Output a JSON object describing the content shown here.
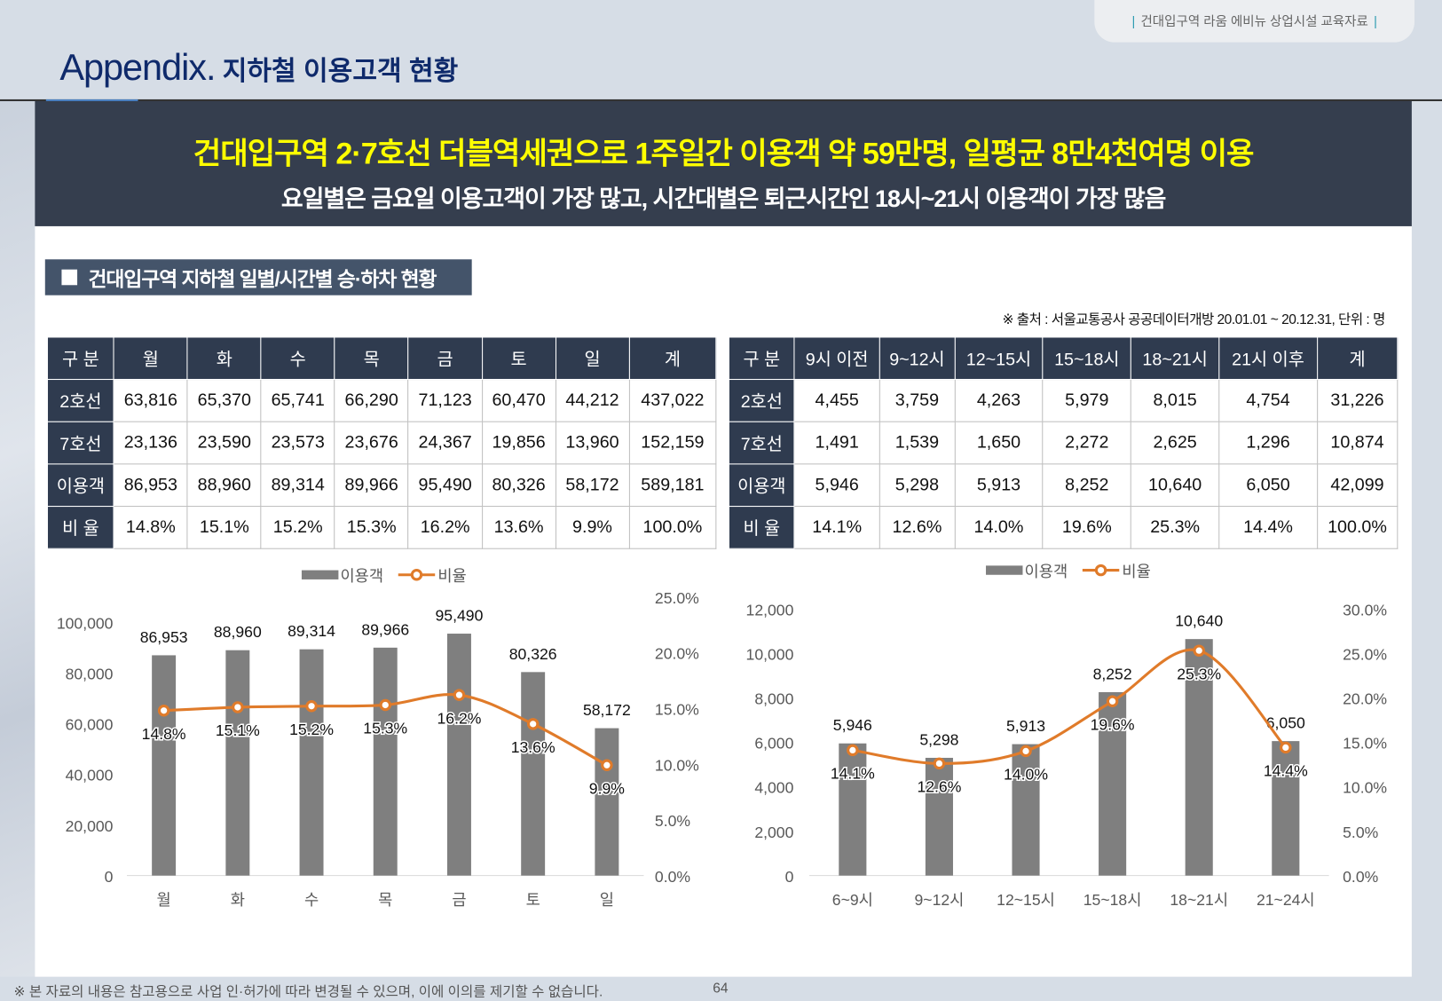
{
  "header": {
    "doc_tag": "건대입구역 라움 에비뉴 상업시설 교육자료",
    "title_main": "Appendix.",
    "title_sub": "지하철 이용고객 현황"
  },
  "banner": {
    "headline": "건대입구역 2·7호선 더블역세권으로 1주일간 이용객 약 59만명, 일평균 8만4천여명 이용",
    "subline": "요일별은 금요일 이용고객이 가장 많고, 시간대별은 퇴근시간인 18시~21시 이용객이 가장 많음"
  },
  "section": {
    "title": "건대입구역 지하철 일별/시간별 승·하차 현황",
    "source": "※ 출처 : 서울교통공사 공공데이터개방 20.01.01 ~ 20.12.31, 단위 : 명"
  },
  "tables": [
    {
      "headers": [
        "구 분",
        "월",
        "화",
        "수",
        "목",
        "금",
        "토",
        "일",
        "계"
      ],
      "rows": [
        [
          "2호선",
          "63,816",
          "65,370",
          "65,741",
          "66,290",
          "71,123",
          "60,470",
          "44,212",
          "437,022"
        ],
        [
          "7호선",
          "23,136",
          "23,590",
          "23,573",
          "23,676",
          "24,367",
          "19,856",
          "13,960",
          "152,159"
        ],
        [
          "이용객",
          "86,953",
          "88,960",
          "89,314",
          "89,966",
          "95,490",
          "80,326",
          "58,172",
          "589,181"
        ],
        [
          "비 율",
          "14.8%",
          "15.1%",
          "15.2%",
          "15.3%",
          "16.2%",
          "13.6%",
          "9.9%",
          "100.0%"
        ]
      ]
    },
    {
      "headers": [
        "구 분",
        "9시 이전",
        "9~12시",
        "12~15시",
        "15~18시",
        "18~21시",
        "21시 이후",
        "계"
      ],
      "rows": [
        [
          "2호선",
          "4,455",
          "3,759",
          "4,263",
          "5,979",
          "8,015",
          "4,754",
          "31,226"
        ],
        [
          "7호선",
          "1,491",
          "1,539",
          "1,650",
          "2,272",
          "2,625",
          "1,296",
          "10,874"
        ],
        [
          "이용객",
          "5,946",
          "5,298",
          "5,913",
          "8,252",
          "10,640",
          "6,050",
          "42,099"
        ],
        [
          "비 율",
          "14.1%",
          "12.6%",
          "14.0%",
          "19.6%",
          "25.3%",
          "14.4%",
          "100.0%"
        ]
      ]
    }
  ],
  "chart_data": [
    {
      "type": "bar+line",
      "legend": [
        "이용객",
        "비율"
      ],
      "legend_position": "top",
      "categories": [
        "월",
        "화",
        "수",
        "목",
        "금",
        "토",
        "일"
      ],
      "series": [
        {
          "name": "이용객",
          "type": "bar",
          "values": [
            86953,
            88960,
            89314,
            89966,
            95490,
            80326,
            58172
          ],
          "labels": [
            "86,953",
            "88,960",
            "89,314",
            "89,966",
            "95,490",
            "80,326",
            "58,172"
          ]
        },
        {
          "name": "비율",
          "type": "line",
          "values": [
            14.8,
            15.1,
            15.2,
            15.3,
            16.2,
            13.6,
            9.9
          ],
          "labels": [
            "14.8%",
            "15.1%",
            "15.2%",
            "15.3%",
            "16.2%",
            "13.6%",
            "9.9%"
          ]
        }
      ],
      "ylim": [
        0,
        110000
      ],
      "y_ticks": [
        "0",
        "20,000",
        "40,000",
        "60,000",
        "80,000",
        "100,000"
      ],
      "y_tick_values": [
        0,
        20000,
        40000,
        60000,
        80000,
        100000
      ],
      "y2lim": [
        0,
        25
      ],
      "y2_ticks": [
        "0.0%",
        "5.0%",
        "10.0%",
        "15.0%",
        "20.0%",
        "25.0%"
      ],
      "y2_tick_values": [
        0,
        5,
        10,
        15,
        20,
        25
      ]
    },
    {
      "type": "bar+line",
      "legend": [
        "이용객",
        "비율"
      ],
      "legend_position": "top",
      "categories": [
        "6~9시",
        "9~12시",
        "12~15시",
        "15~18시",
        "18~21시",
        "21~24시"
      ],
      "series": [
        {
          "name": "이용객",
          "type": "bar",
          "values": [
            5946,
            5298,
            5913,
            8252,
            10640,
            6050
          ],
          "labels": [
            "5,946",
            "5,298",
            "5,913",
            "8,252",
            "10,640",
            "6,050"
          ]
        },
        {
          "name": "비율",
          "type": "line",
          "values": [
            14.1,
            12.6,
            14.0,
            19.6,
            25.3,
            14.4
          ],
          "labels": [
            "14.1%",
            "12.6%",
            "14.0%",
            "19.6%",
            "25.3%",
            "14.4%"
          ]
        }
      ],
      "ylim": [
        0,
        12000
      ],
      "y_ticks": [
        "0",
        "2,000",
        "4,000",
        "6,000",
        "8,000",
        "10,000",
        "12,000"
      ],
      "y_tick_values": [
        0,
        2000,
        4000,
        6000,
        8000,
        10000,
        12000
      ],
      "y2lim": [
        0,
        30
      ],
      "y2_ticks": [
        "0.0%",
        "5.0%",
        "10.0%",
        "15.0%",
        "20.0%",
        "25.0%",
        "30.0%"
      ],
      "y2_tick_values": [
        0,
        5,
        10,
        15,
        20,
        25,
        30
      ]
    }
  ],
  "colors": {
    "bar": "#7f7f7f",
    "line": "#e07b2a",
    "banner": "#353e4e",
    "headline": "#ffff00"
  },
  "footer": {
    "disclaimer": "※ 본 자료의 내용은 참고용으로 사업 인·허가에 따라 변경될 수 있으며, 이에 이의를 제기할 수 없습니다.",
    "page": "64"
  }
}
